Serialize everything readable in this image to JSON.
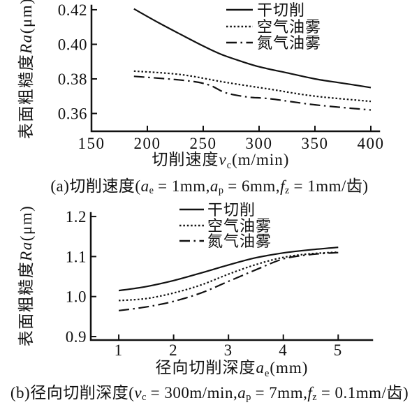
{
  "figure": {
    "background": "#ffffff",
    "ink": "#111111"
  },
  "chart_data": [
    {
      "id": "a",
      "type": "line",
      "title": "",
      "xlabel": "切削速度vc(m/min)",
      "ylabel": "表面粗糙度Ra(μm)",
      "xlabel_segments": [
        {
          "t": "切削速度"
        },
        {
          "t": "v",
          "i": true
        },
        {
          "t": "c",
          "sub": true
        },
        {
          "t": "(m/min)"
        }
      ],
      "ylabel_segments": [
        {
          "t": "表面粗糙度"
        },
        {
          "t": "Ra",
          "i": true
        },
        {
          "t": "(μm)"
        }
      ],
      "xlim": [
        150,
        407.5
      ],
      "ylim": [
        0.3497,
        0.4224
      ],
      "grid": false,
      "legend_position": "upper-right",
      "xticks": [
        {
          "v": 150,
          "label": "150"
        },
        {
          "v": 200,
          "label": "200"
        },
        {
          "v": 250,
          "label": "250"
        },
        {
          "v": 300,
          "label": "300"
        },
        {
          "v": 350,
          "label": "350"
        },
        {
          "v": 400,
          "label": "400"
        }
      ],
      "yticks": [
        {
          "v": 0.36,
          "label": "0.36"
        },
        {
          "v": 0.38,
          "label": "0.38"
        },
        {
          "v": 0.4,
          "label": "0.40"
        },
        {
          "v": 0.42,
          "label": "0.42"
        }
      ],
      "series": [
        {
          "key": "dry-cutting",
          "name": "干切削",
          "line": "solid",
          "x": [
            188,
            210,
            235,
            250,
            265,
            280,
            300,
            325,
            350,
            375,
            400
          ],
          "y": [
            0.4205,
            0.4125,
            0.404,
            0.399,
            0.3945,
            0.391,
            0.387,
            0.3835,
            0.38,
            0.3775,
            0.375
          ]
        },
        {
          "key": "air-oil-mist",
          "name": "空气油雾",
          "line": "dotted",
          "x": [
            188,
            230,
            270,
            310,
            350,
            400
          ],
          "y": [
            0.3845,
            0.3825,
            0.378,
            0.374,
            0.37,
            0.367
          ]
        },
        {
          "key": "nitrogen-oil-mist",
          "name": "氮气油雾",
          "line": "dashdot",
          "x": [
            188,
            235,
            255,
            270,
            290,
            310,
            350,
            400
          ],
          "y": [
            0.3815,
            0.379,
            0.3765,
            0.372,
            0.3695,
            0.3685,
            0.365,
            0.362
          ]
        }
      ],
      "caption_segments": [
        {
          "t": "(a)切削速度("
        },
        {
          "t": "a",
          "i": true
        },
        {
          "t": "e",
          "sub": true
        },
        {
          "t": " = 1mm,"
        },
        {
          "t": "a",
          "i": true
        },
        {
          "t": "p",
          "sub": true
        },
        {
          "t": " = 6mm,"
        },
        {
          "t": "f",
          "i": true
        },
        {
          "t": "z",
          "sub": true
        },
        {
          "t": " = 1mm/齿)"
        }
      ]
    },
    {
      "id": "b",
      "type": "line",
      "title": "",
      "xlabel": "径向切削深度ae(mm)",
      "ylabel": "表面粗糙度Ra(μm)",
      "xlabel_segments": [
        {
          "t": "径向切削深度"
        },
        {
          "t": "a",
          "i": true
        },
        {
          "t": "e",
          "sub": true
        },
        {
          "t": "(mm)"
        }
      ],
      "ylabel_segments": [
        {
          "t": "表面粗糙度"
        },
        {
          "t": "Ra",
          "i": true
        },
        {
          "t": "(μm)"
        }
      ],
      "xlim": [
        0.49,
        5.62
      ],
      "ylim": [
        0.8913,
        1.2089
      ],
      "grid": false,
      "legend_position": "upper-center",
      "xticks": [
        {
          "v": 1,
          "label": "1"
        },
        {
          "v": 2,
          "label": "2"
        },
        {
          "v": 3,
          "label": "3"
        },
        {
          "v": 4,
          "label": "4"
        },
        {
          "v": 5,
          "label": "5"
        }
      ],
      "yticks": [
        {
          "v": 0.9,
          "label": "0.9"
        },
        {
          "v": 1.0,
          "label": "1.0"
        },
        {
          "v": 1.1,
          "label": "1.1"
        },
        {
          "v": 1.2,
          "label": "1.2"
        }
      ],
      "series": [
        {
          "key": "dry-cutting",
          "name": "干切削",
          "line": "solid",
          "x": [
            1,
            1.5,
            2,
            2.5,
            3,
            3.5,
            4,
            4.5,
            5
          ],
          "y": [
            1.015,
            1.025,
            1.04,
            1.059,
            1.079,
            1.097,
            1.109,
            1.117,
            1.123
          ]
        },
        {
          "key": "air-oil-mist",
          "name": "空气油雾",
          "line": "dotted",
          "x": [
            1,
            1.5,
            2,
            2.5,
            3,
            3.5,
            4,
            4.5,
            5
          ],
          "y": [
            0.99,
            0.995,
            1.009,
            1.029,
            1.056,
            1.08,
            1.098,
            1.107,
            1.111
          ]
        },
        {
          "key": "nitrogen-oil-mist",
          "name": "氮气油雾",
          "line": "dashdot",
          "x": [
            1,
            1.5,
            2,
            2.5,
            3,
            3.5,
            4,
            4.5,
            5
          ],
          "y": [
            0.965,
            0.974,
            0.988,
            1.009,
            1.038,
            1.067,
            1.094,
            1.105,
            1.11
          ]
        }
      ],
      "caption_segments": [
        {
          "t": "(b)径向切削深度("
        },
        {
          "t": "v",
          "i": true
        },
        {
          "t": "c",
          "sub": true
        },
        {
          "t": " = 300m/min,"
        },
        {
          "t": "a",
          "i": true
        },
        {
          "t": "p",
          "sub": true
        },
        {
          "t": " = 7mm,"
        },
        {
          "t": "f",
          "i": true
        },
        {
          "t": "z",
          "sub": true
        },
        {
          "t": " = 0.1mm/齿)"
        }
      ]
    }
  ]
}
